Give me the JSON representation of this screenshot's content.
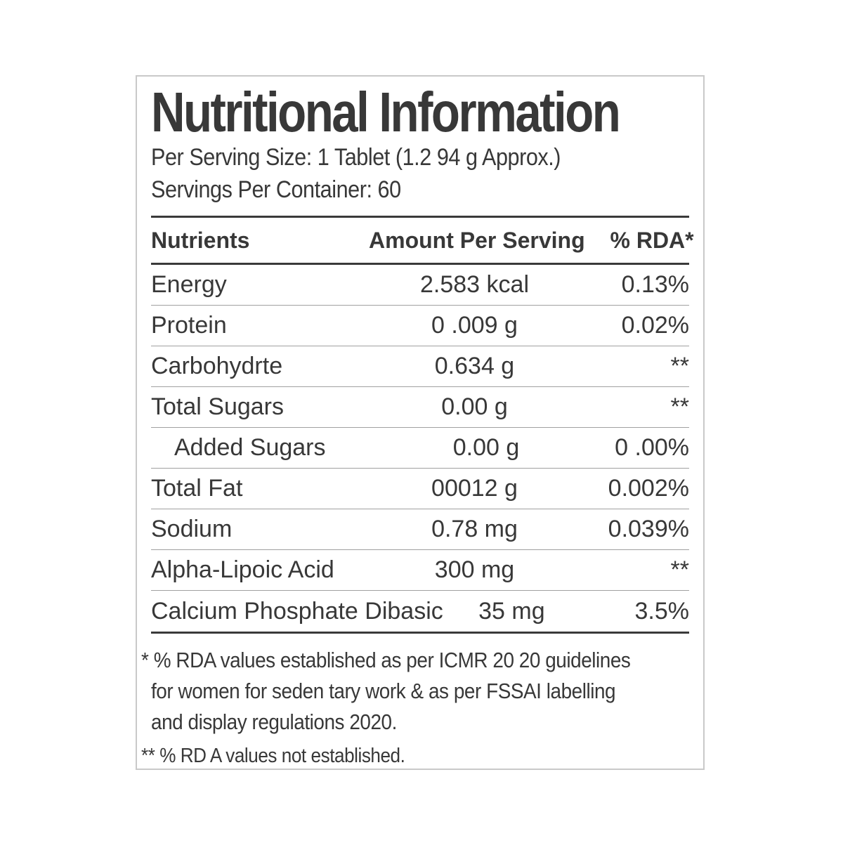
{
  "label": {
    "title": "Nutritional Information",
    "serving_size_line": "Per Serving Size: 1 Tablet (1.2 94 g Approx.)",
    "servings_line": "Servings Per Container: 60",
    "columns": [
      "Nutrients",
      "Amount Per Serving",
      "% RDA*"
    ],
    "rows": [
      {
        "nutrient": "Energy",
        "amount": "2.583 kcal",
        "rda": "0.13%"
      },
      {
        "nutrient": "Protein",
        "amount": "0 .009 g",
        "rda": "0.02%"
      },
      {
        "nutrient": "Carbohydrte",
        "amount": "0.634 g",
        "rda": "**"
      },
      {
        "nutrient": "Total Sugars",
        "amount": "0.00 g",
        "rda": "**"
      },
      {
        "nutrient": "Added Sugars",
        "amount": "0.00 g",
        "rda": "0 .00%"
      },
      {
        "nutrient": "Total Fat",
        "amount": "00012 g",
        "rda": "0.002%"
      },
      {
        "nutrient": "Sodium",
        "amount": "0.78 mg",
        "rda": "0.039%"
      },
      {
        "nutrient": "Alpha-Lipoic Acid",
        "amount": "300 mg",
        "rda": "**"
      },
      {
        "nutrient": "Calcium Phosphate Dibasic",
        "amount": "35 mg",
        "rda": "3.5%"
      }
    ],
    "footnotes": [
      "* % RDA values established as per ICMR 20 20 guidelines",
      "for women for seden tary work & as per FSSAI labelling",
      "and display regulations 2020.",
      "** % RD A values not established."
    ],
    "colors": {
      "text": "#383838",
      "rule_dark": "#3a3a3a",
      "rule_light": "#a0a0a0",
      "border": "#c9c9c9",
      "background": "#ffffff"
    }
  }
}
